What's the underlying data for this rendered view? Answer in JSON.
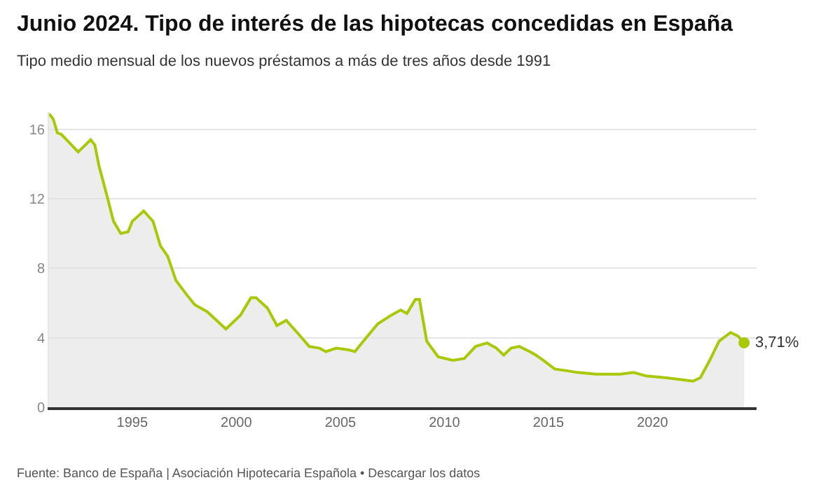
{
  "chart_data": {
    "type": "area",
    "title": "Junio 2024. Tipo de interés de las hipotecas concedidas en España",
    "subtitle": "Tipo medio mensual de los nuevos préstamos a más de tres años desde 1991",
    "x": [
      1991.0,
      1991.2,
      1991.4,
      1991.6,
      1992.0,
      1992.4,
      1993.0,
      1993.2,
      1993.4,
      1993.8,
      1994.1,
      1994.45,
      1994.8,
      1995.0,
      1995.55,
      1996.0,
      1996.35,
      1996.7,
      1997.1,
      1997.6,
      1998.0,
      1998.6,
      1999.5,
      2000.2,
      2000.7,
      2000.95,
      2001.5,
      2001.95,
      2002.4,
      2003.0,
      2003.5,
      2004.0,
      2004.3,
      2004.8,
      2005.4,
      2005.7,
      2006.1,
      2006.8,
      2007.45,
      2007.9,
      2008.2,
      2008.6,
      2008.8,
      2009.15,
      2009.7,
      2010.4,
      2010.95,
      2011.5,
      2012.05,
      2012.5,
      2012.85,
      2013.2,
      2013.6,
      2014.1,
      2014.4,
      2014.75,
      2015.3,
      2015.9,
      2016.4,
      2017.3,
      2018.45,
      2019.1,
      2019.7,
      2020.6,
      2021.3,
      2021.95,
      2022.3,
      2022.75,
      2023.2,
      2023.75,
      2024.1,
      2024.4
    ],
    "series": [
      {
        "color": "#a8c808",
        "values": [
          16.9,
          16.6,
          15.8,
          15.7,
          15.2,
          14.7,
          15.4,
          15.1,
          13.9,
          12.1,
          10.7,
          10.0,
          10.1,
          10.7,
          11.3,
          10.7,
          9.3,
          8.7,
          7.3,
          6.5,
          5.9,
          5.5,
          4.5,
          5.3,
          6.3,
          6.3,
          5.7,
          4.7,
          5.0,
          4.2,
          3.5,
          3.4,
          3.2,
          3.4,
          3.3,
          3.2,
          3.8,
          4.8,
          5.3,
          5.6,
          5.4,
          6.2,
          6.2,
          3.8,
          2.9,
          2.7,
          2.8,
          3.5,
          3.7,
          3.4,
          3.0,
          3.4,
          3.5,
          3.2,
          3.0,
          2.7,
          2.2,
          2.1,
          2.0,
          1.9,
          1.9,
          2.0,
          1.8,
          1.7,
          1.6,
          1.5,
          1.7,
          2.7,
          3.8,
          4.3,
          4.1,
          3.71
        ]
      }
    ],
    "xlim": [
      1991,
      2025
    ],
    "xticks": [
      1995,
      2000,
      2005,
      2010,
      2015,
      2020
    ],
    "ylim": [
      0,
      17
    ],
    "yticks": [
      0,
      4,
      8,
      12,
      16
    ],
    "grid": "y",
    "annotations": [
      {
        "text": "3,71%",
        "x": 2024.4,
        "y": 3.71
      },
      "Fuente: Banco de España | Asociación Hipotecaria Española • Descargar los datos"
    ]
  }
}
